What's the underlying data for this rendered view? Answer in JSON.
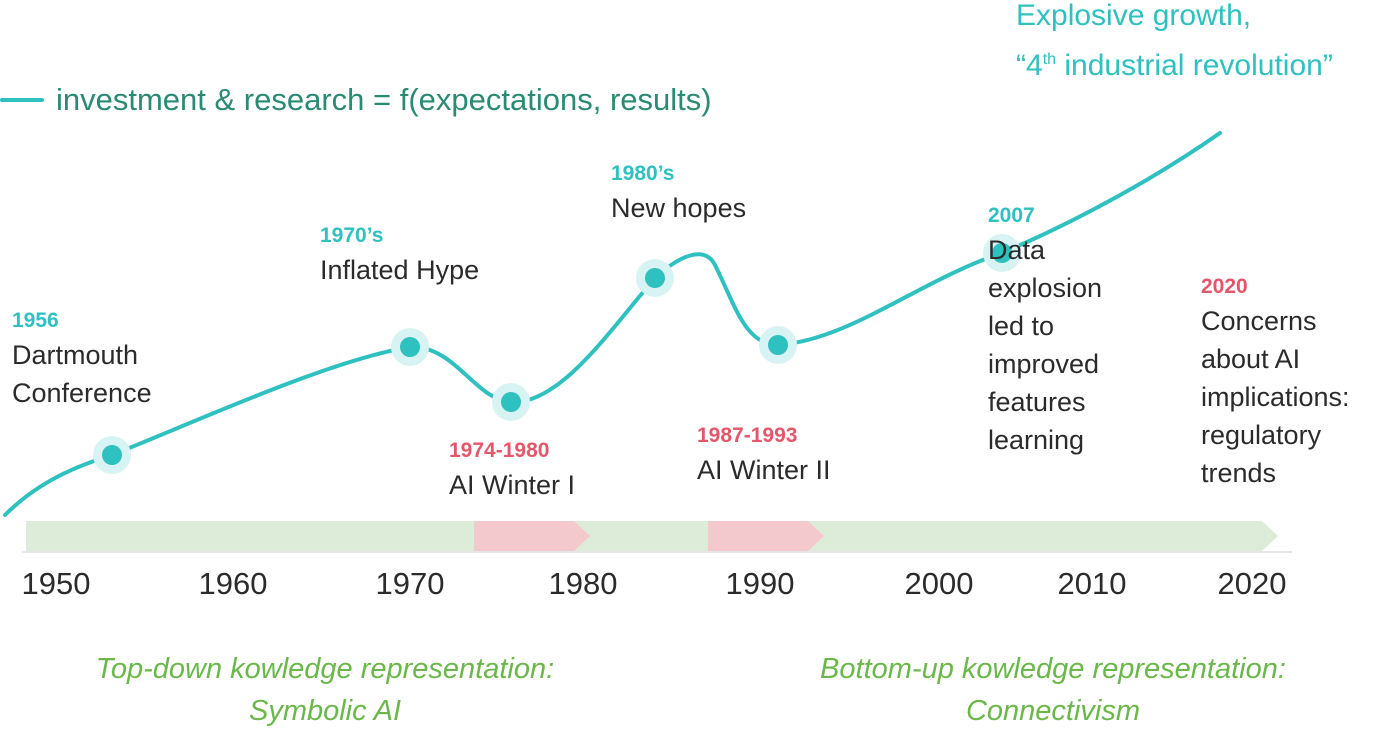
{
  "colors": {
    "curve": "#2fc0c0",
    "dot": "#2fc0c0",
    "dot_halo": "#d8f3f3",
    "winter": "#e4576a",
    "era_green": "#dcecd9",
    "era_red": "#f4c9cd",
    "axis_line": "#e6e6e6",
    "caption_green": "#6bb84a",
    "legend_text": "#2a8a74"
  },
  "legend": {
    "label": "investment & research = f(expectations, results)"
  },
  "headline": {
    "line1": "Explosive growth,",
    "line2_pre": "“4",
    "line2_sup": "th",
    "line2_post": " industrial revolution”"
  },
  "events": [
    {
      "year": "1956",
      "lines": [
        "Dartmouth",
        "Conference"
      ]
    },
    {
      "year": "1970’s",
      "lines": [
        "Inflated Hype"
      ]
    },
    {
      "year": "1974-1980",
      "lines": [
        "AI Winter I"
      ]
    },
    {
      "year": "1980’s",
      "lines": [
        "New hopes"
      ]
    },
    {
      "year": "1987-1993",
      "lines": [
        "AI Winter II"
      ]
    },
    {
      "year": "2007",
      "lines": [
        "Data",
        "explosion",
        "led to",
        "improved",
        "features",
        "learning"
      ]
    },
    {
      "year": "2020",
      "lines": [
        "Concerns",
        "about AI",
        "implications:",
        "regulatory",
        "trends"
      ]
    }
  ],
  "timeline": {
    "decades": [
      "1950",
      "1960",
      "1970",
      "1980",
      "1990",
      "2000",
      "2010",
      "2020"
    ],
    "winter_periods": [
      "1974-1980",
      "1987-1993"
    ]
  },
  "captions": {
    "left": [
      "Top-down kowledge representation:",
      "Symbolic AI"
    ],
    "right": [
      "Bottom-up kowledge representation:",
      "Connectivism"
    ]
  }
}
